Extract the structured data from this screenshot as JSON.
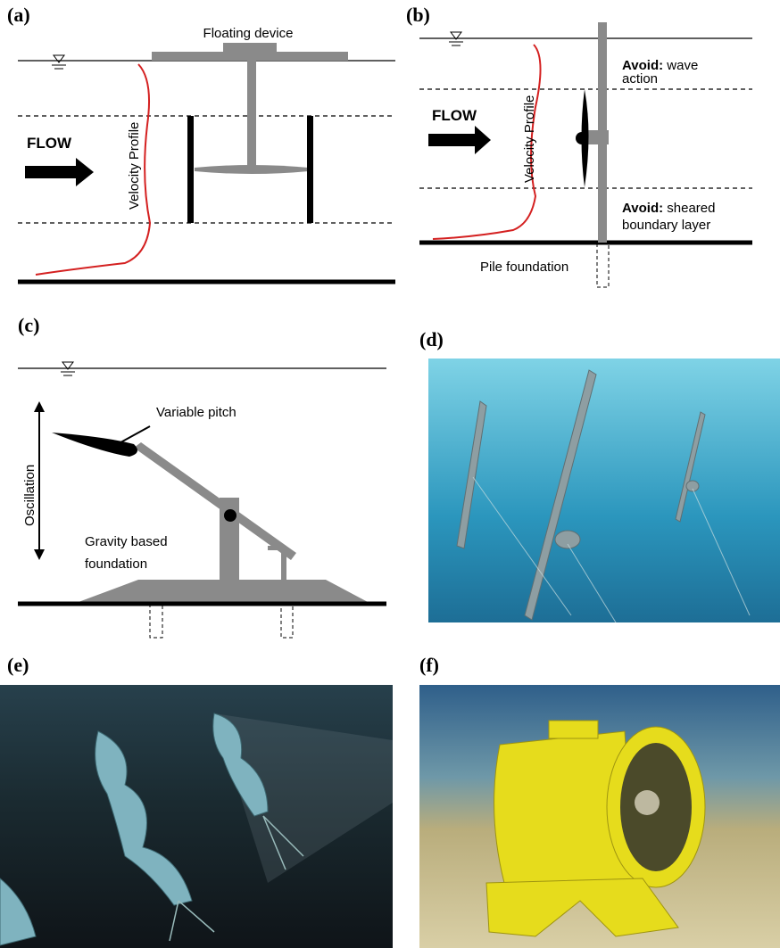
{
  "panels": {
    "a": {
      "label": "(a)",
      "floating_device": "Floating device",
      "flow": "FLOW",
      "velocity_profile": "Velocity Profile"
    },
    "b": {
      "label": "(b)",
      "flow": "FLOW",
      "velocity_profile": "Velocity Profile",
      "avoid_top": {
        "keyword": "Avoid:",
        "line1": "wave",
        "line2": "action"
      },
      "avoid_bottom": {
        "keyword": "Avoid:",
        "line1": "sheared",
        "line2": "boundary layer"
      },
      "pile_foundation": "Pile foundation"
    },
    "c": {
      "label": "(c)",
      "variable_pitch": "Variable pitch",
      "oscillation": "Oscillation",
      "foundation": [
        "Gravity based",
        "foundation"
      ]
    },
    "d": {
      "label": "(d)"
    },
    "e": {
      "label": "(e)"
    },
    "f": {
      "label": "(f)"
    }
  }
}
